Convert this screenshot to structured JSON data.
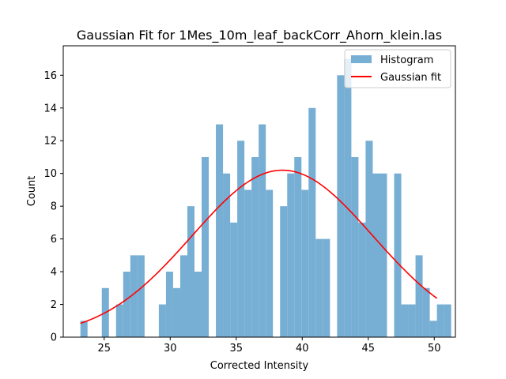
{
  "chart_data": {
    "type": "bar",
    "title": "Gaussian Fit for 1Mes_10m_leaf_backCorr_Ahorn_klein.las",
    "xlabel": "Corrected Intensity",
    "ylabel": "Count",
    "xlim": [
      21.9,
      51.6
    ],
    "ylim": [
      0,
      17.8
    ],
    "xticks": [
      25,
      30,
      35,
      40,
      45,
      50
    ],
    "yticks": [
      0,
      2,
      4,
      6,
      8,
      10,
      12,
      14,
      16
    ],
    "legend_position": "top-right",
    "grid": false,
    "bar_color": "#77AED4",
    "fit_color": "#FF0000",
    "series": [
      {
        "name": "Histogram",
        "kind": "histogram",
        "bin_start": 23.2,
        "bin_width": 0.54,
        "counts": [
          1,
          0,
          0,
          3,
          0,
          2,
          4,
          5,
          5,
          0,
          0,
          2,
          4,
          3,
          5,
          8,
          4,
          11,
          0,
          13,
          10,
          7,
          12,
          9,
          11,
          13,
          9,
          0,
          8,
          10,
          11,
          9,
          14,
          6,
          6,
          0,
          16,
          17,
          11,
          7,
          12,
          10,
          10,
          0,
          10,
          2,
          2,
          5,
          3,
          1,
          2,
          2
        ]
      },
      {
        "name": "Gaussian fit",
        "kind": "line",
        "mu": 38.5,
        "sigma": 6.85,
        "amplitude": 10.2,
        "x_range": [
          23.2,
          50.2
        ]
      }
    ]
  }
}
